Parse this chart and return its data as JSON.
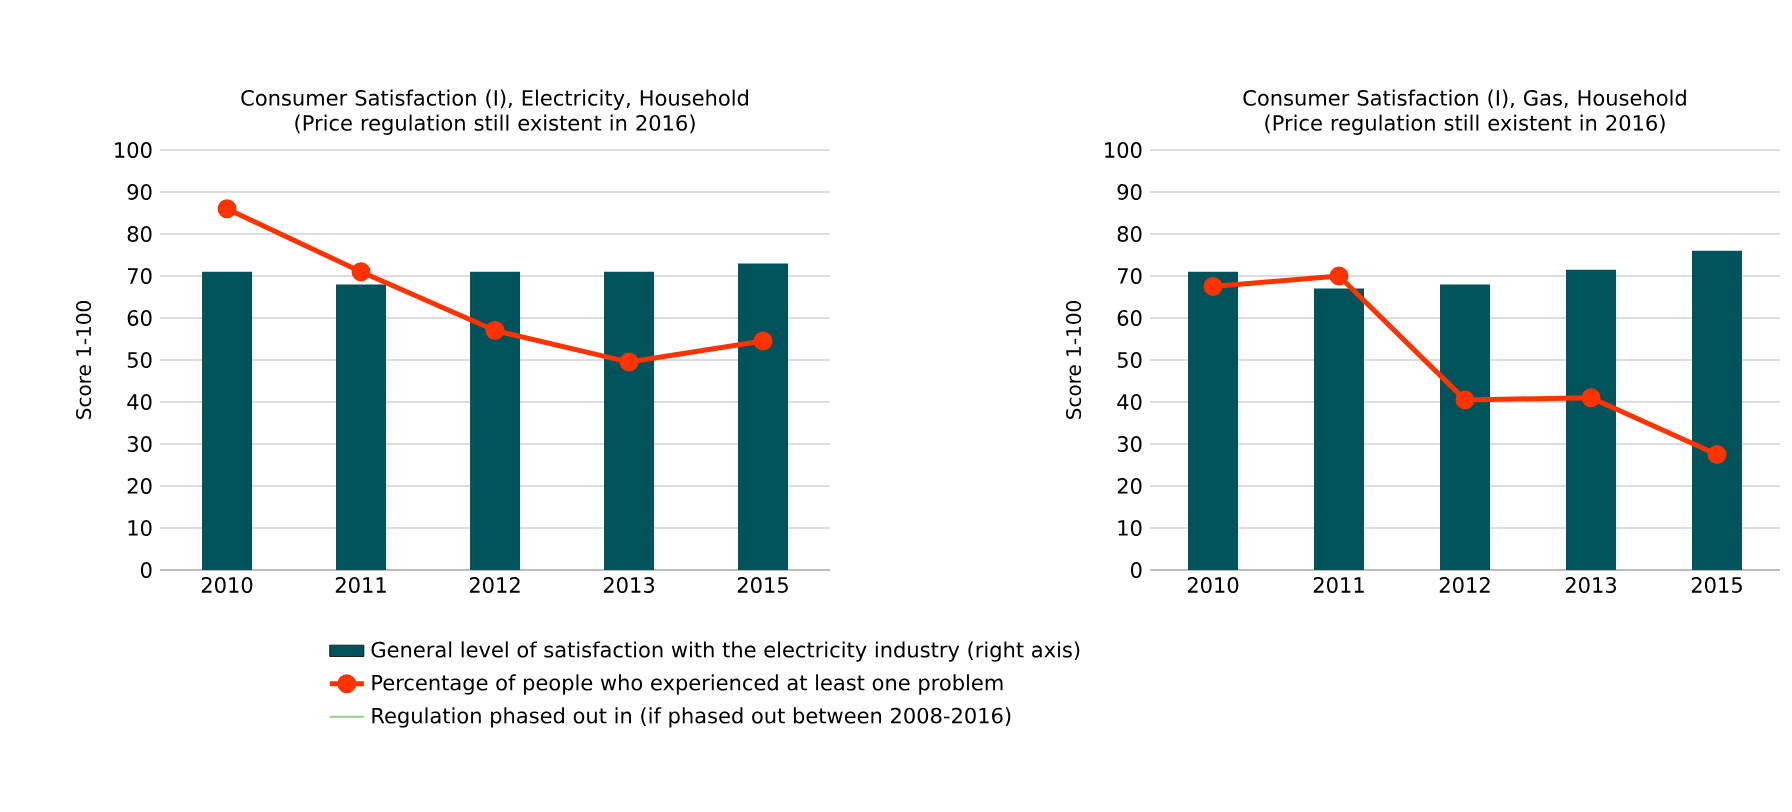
{
  "chart_data": [
    {
      "type": "bar",
      "title": "Consumer Satisfaction (I), Electricity, Household  (Price regulation still existent in 2016)",
      "ylabel": "Score 1-100",
      "categories": [
        "2010",
        "2011",
        "2012",
        "2013",
        "2015"
      ],
      "series": [
        {
          "name": "General level of satisfaction with the electricity industry (right axis)",
          "color": "#00535a",
          "values": [
            71,
            68,
            71,
            71,
            73
          ]
        },
        {
          "name": "Percentage of people who experienced at least one problem",
          "type": "line",
          "color": "#ff3300",
          "marker": "circle",
          "values": [
            86,
            71,
            57,
            49.5,
            54.5
          ]
        },
        {
          "name": "Regulation phased out in (if phased out between 2008-2016)",
          "type": "line",
          "color": "#8fd18a",
          "values": [
            null,
            null,
            null,
            null,
            null
          ]
        }
      ],
      "ylim": [
        0,
        100
      ],
      "yticks": [
        0,
        10,
        20,
        30,
        40,
        50,
        60,
        70,
        80,
        90,
        100
      ],
      "grid": "y",
      "legend": "bottom"
    },
    {
      "type": "bar",
      "title": "Consumer Satisfaction (I), Gas, Household (Price regulation still existent in 2016)",
      "ylabel": "Score 1-100",
      "categories": [
        "2010",
        "2011",
        "2012",
        "2013",
        "2015"
      ],
      "series": [
        {
          "color": "#00535a",
          "values": [
            71,
            67,
            68,
            71.5,
            76
          ]
        },
        {
          "type": "line",
          "color": "#ff3300",
          "marker": "circle",
          "values": [
            67.5,
            70,
            40.5,
            41,
            27.5
          ]
        }
      ],
      "ylim": [
        0,
        100
      ],
      "yticks": [
        0,
        10,
        20,
        30,
        40,
        50,
        60,
        70,
        80,
        90,
        100
      ],
      "grid": "y"
    }
  ]
}
